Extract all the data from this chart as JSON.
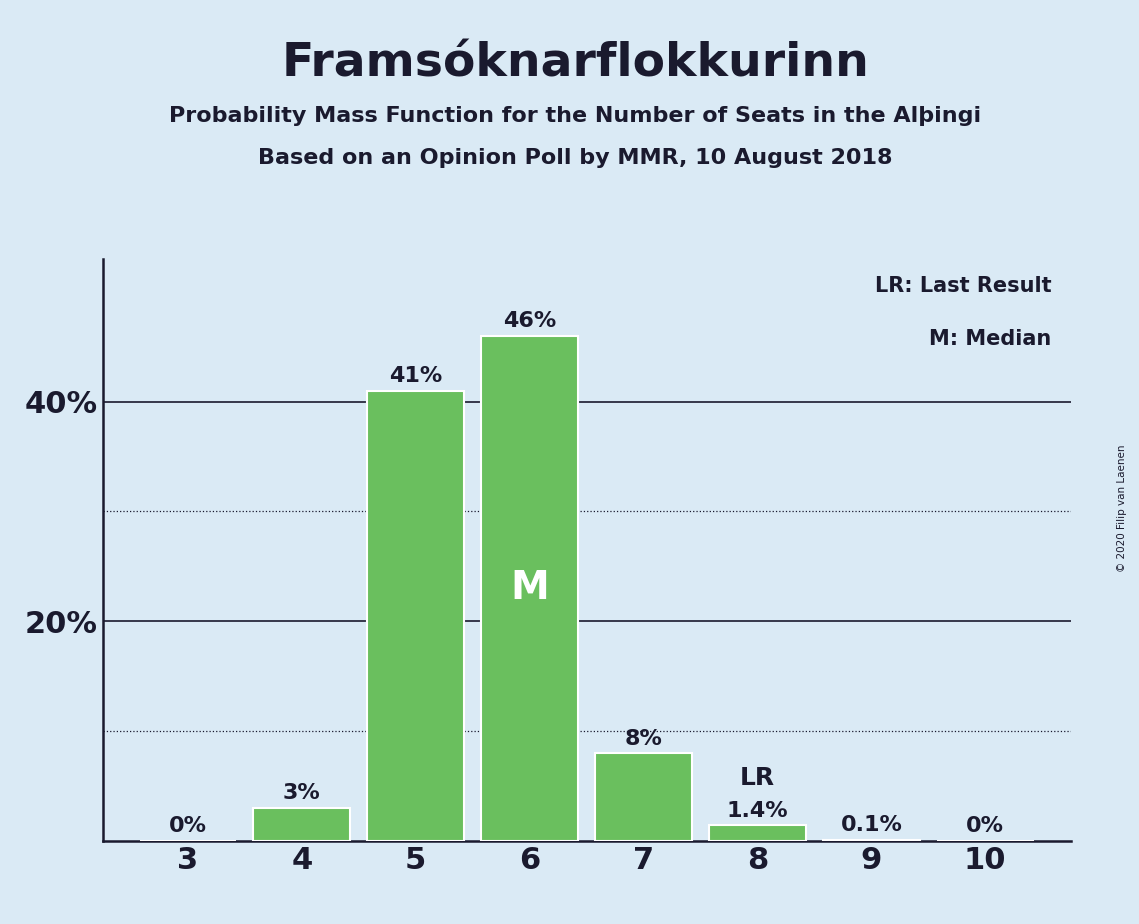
{
  "title": "Framsóknarflokkurinn",
  "subtitle1": "Probability Mass Function for the Number of Seats in the Alþingi",
  "subtitle2": "Based on an Opinion Poll by MMR, 10 August 2018",
  "copyright": "© 2020 Filip van Laenen",
  "categories": [
    3,
    4,
    5,
    6,
    7,
    8,
    9,
    10
  ],
  "values": [
    0.0,
    0.03,
    0.41,
    0.46,
    0.08,
    0.014,
    0.001,
    0.0
  ],
  "bar_color": "#6abf5e",
  "bar_edge_color": "#ffffff",
  "background_color": "#daeaf5",
  "text_color": "#1a1a2e",
  "bar_labels": [
    "0%",
    "3%",
    "41%",
    "46%",
    "8%",
    "1.4%",
    "0.1%",
    "0%"
  ],
  "median_bar_cat": 6,
  "median_label": "M",
  "lr_label": "LR",
  "lr_bar_cat": 8,
  "solid_gridlines": [
    0.2,
    0.4
  ],
  "dotted_gridlines": [
    0.1,
    0.3
  ],
  "ylim": [
    0,
    0.53
  ],
  "legend_lr": "LR: Last Result",
  "legend_m": "M: Median"
}
